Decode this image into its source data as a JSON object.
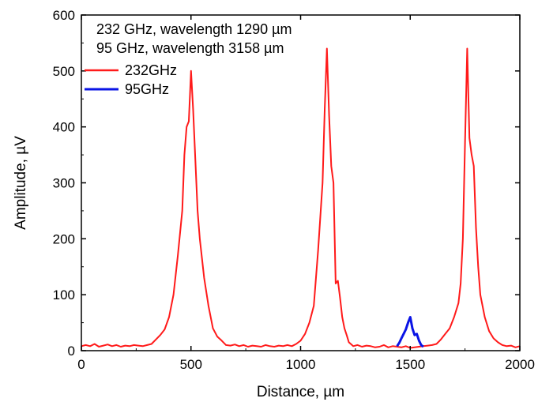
{
  "chart_data": {
    "type": "line",
    "xlabel": "Distance, µm",
    "ylabel": "Amplitude, µV",
    "xlim": [
      0,
      2000
    ],
    "ylim": [
      0,
      600
    ],
    "xticks": [
      0,
      500,
      1000,
      1500,
      2000
    ],
    "yticks": [
      0,
      100,
      200,
      300,
      400,
      500,
      600
    ],
    "grid": false,
    "annotations": [
      "232 GHz, wavelength 1290 µm",
      "95 GHz, wavelength 3158 µm"
    ],
    "legend_position": "top-left",
    "colors": {
      "s232": "#ff1a1a",
      "s95": "#0a14e6",
      "axis": "#000000"
    },
    "series": [
      {
        "name": "232GHz",
        "color": "#ff1a1a",
        "x": [
          0,
          20,
          40,
          60,
          80,
          100,
          120,
          140,
          160,
          180,
          200,
          220,
          240,
          260,
          280,
          300,
          320,
          340,
          360,
          380,
          400,
          420,
          440,
          460,
          470,
          480,
          490,
          500,
          510,
          520,
          530,
          540,
          560,
          580,
          600,
          620,
          640,
          660,
          680,
          700,
          720,
          740,
          760,
          780,
          800,
          820,
          840,
          860,
          880,
          900,
          920,
          940,
          960,
          980,
          1000,
          1020,
          1040,
          1060,
          1080,
          1100,
          1110,
          1120,
          1130,
          1140,
          1150,
          1160,
          1170,
          1180,
          1190,
          1200,
          1210,
          1220,
          1240,
          1260,
          1280,
          1300,
          1320,
          1340,
          1360,
          1380,
          1400,
          1420,
          1440,
          1460,
          1480,
          1500,
          1520,
          1540,
          1560,
          1580,
          1600,
          1620,
          1640,
          1660,
          1680,
          1700,
          1720,
          1730,
          1740,
          1750,
          1760,
          1770,
          1780,
          1790,
          1800,
          1810,
          1820,
          1840,
          1860,
          1880,
          1900,
          1920,
          1940,
          1960,
          1980,
          2000
        ],
        "y": [
          8,
          10,
          8,
          12,
          7,
          9,
          11,
          8,
          10,
          7,
          9,
          8,
          10,
          9,
          8,
          10,
          12,
          20,
          28,
          38,
          60,
          100,
          170,
          250,
          350,
          400,
          410,
          500,
          430,
          340,
          250,
          200,
          130,
          80,
          40,
          25,
          18,
          10,
          9,
          11,
          8,
          10,
          7,
          9,
          8,
          7,
          10,
          8,
          7,
          9,
          8,
          10,
          8,
          12,
          18,
          30,
          50,
          80,
          180,
          300,
          430,
          540,
          420,
          330,
          300,
          120,
          125,
          95,
          60,
          40,
          28,
          15,
          8,
          10,
          7,
          9,
          8,
          6,
          7,
          10,
          6,
          8,
          7,
          6,
          8,
          5,
          6,
          7,
          8,
          9,
          10,
          12,
          20,
          30,
          40,
          60,
          85,
          120,
          200,
          370,
          540,
          380,
          350,
          330,
          220,
          150,
          100,
          60,
          35,
          22,
          15,
          10,
          8,
          9,
          6,
          8
        ],
        "peak_labels": []
      },
      {
        "name": "95GHz",
        "color": "#0a14e6",
        "x": [
          1440,
          1450,
          1460,
          1470,
          1480,
          1490,
          1500,
          1510,
          1520,
          1530,
          1540,
          1550,
          1560
        ],
        "y": [
          8,
          14,
          22,
          30,
          38,
          50,
          60,
          40,
          28,
          30,
          18,
          10,
          7
        ]
      }
    ]
  }
}
